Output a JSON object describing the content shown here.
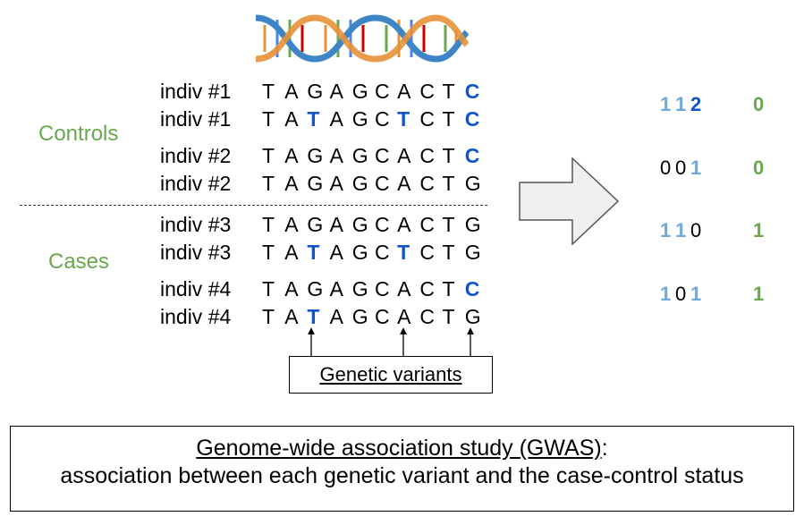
{
  "controls_label": "Controls",
  "cases_label": "Cases",
  "rows": [
    {
      "indiv": "indiv #1",
      "seq": [
        "T",
        "A",
        "G",
        "A",
        "G",
        "C",
        "A",
        "C",
        "T",
        "C"
      ],
      "hl": [
        9
      ]
    },
    {
      "indiv": "indiv #1",
      "seq": [
        "T",
        "A",
        "T",
        "A",
        "G",
        "C",
        "T",
        "C",
        "T",
        "C"
      ],
      "hl": [
        2,
        6,
        9
      ]
    },
    {
      "indiv": "indiv #2",
      "seq": [
        "T",
        "A",
        "G",
        "A",
        "G",
        "C",
        "A",
        "C",
        "T",
        "C"
      ],
      "hl": [
        9
      ]
    },
    {
      "indiv": "indiv #2",
      "seq": [
        "T",
        "A",
        "G",
        "A",
        "G",
        "C",
        "A",
        "C",
        "T",
        "G"
      ],
      "hl": []
    },
    {
      "indiv": "indiv #3",
      "seq": [
        "T",
        "A",
        "G",
        "A",
        "G",
        "C",
        "A",
        "C",
        "T",
        "G"
      ],
      "hl": []
    },
    {
      "indiv": "indiv #3",
      "seq": [
        "T",
        "A",
        "T",
        "A",
        "G",
        "C",
        "T",
        "C",
        "T",
        "G"
      ],
      "hl": [
        2,
        6
      ]
    },
    {
      "indiv": "indiv #4",
      "seq": [
        "T",
        "A",
        "G",
        "A",
        "G",
        "C",
        "A",
        "C",
        "T",
        "C"
      ],
      "hl": [
        9
      ]
    },
    {
      "indiv": "indiv #4",
      "seq": [
        "T",
        "A",
        "T",
        "A",
        "G",
        "C",
        "A",
        "C",
        "T",
        "G"
      ],
      "hl": [
        2
      ]
    }
  ],
  "genotypes": [
    {
      "codes": [
        "1",
        "1",
        "2"
      ],
      "styles": [
        "lb",
        "lb",
        "db"
      ],
      "status": "0"
    },
    {
      "codes": [
        "0",
        "0",
        "1"
      ],
      "styles": [
        "",
        "",
        "lb"
      ],
      "status": "0"
    },
    {
      "codes": [
        "1",
        "1",
        "0"
      ],
      "styles": [
        "lb",
        "lb",
        ""
      ],
      "status": "1"
    },
    {
      "codes": [
        "1",
        "0",
        "1"
      ],
      "styles": [
        "lb",
        "",
        "lb"
      ],
      "status": "1"
    }
  ],
  "variants_label": "Genetic variants",
  "gwas_title": "Genome-wide association study (GWAS)",
  "gwas_colon": ":",
  "gwas_subtitle": "association between each genetic variant and the case-control status",
  "colors": {
    "green": "#6aa84f",
    "dark_blue": "#1155cc",
    "light_blue": "#6fa8dc"
  },
  "icons": [
    "dna-helix-icon",
    "right-arrow-icon"
  ]
}
